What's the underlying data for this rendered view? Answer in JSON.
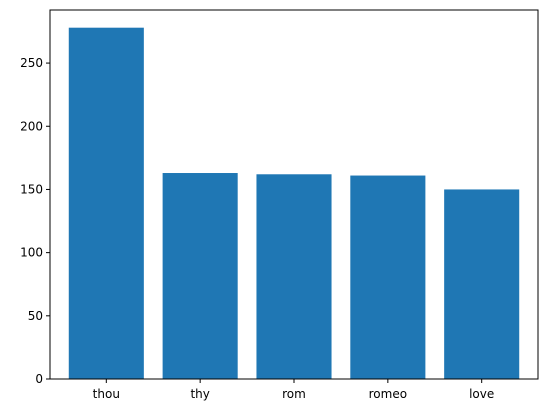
{
  "chart_data": {
    "type": "bar",
    "title": "",
    "xlabel": "",
    "ylabel": "",
    "categories": [
      "thou",
      "thy",
      "rom",
      "romeo",
      "love"
    ],
    "values": [
      278,
      163,
      162,
      161,
      150
    ],
    "ylim": [
      0,
      292
    ],
    "yticks": [
      0,
      50,
      100,
      150,
      200,
      250
    ],
    "grid": false,
    "bar_color": "#1f77b4"
  }
}
